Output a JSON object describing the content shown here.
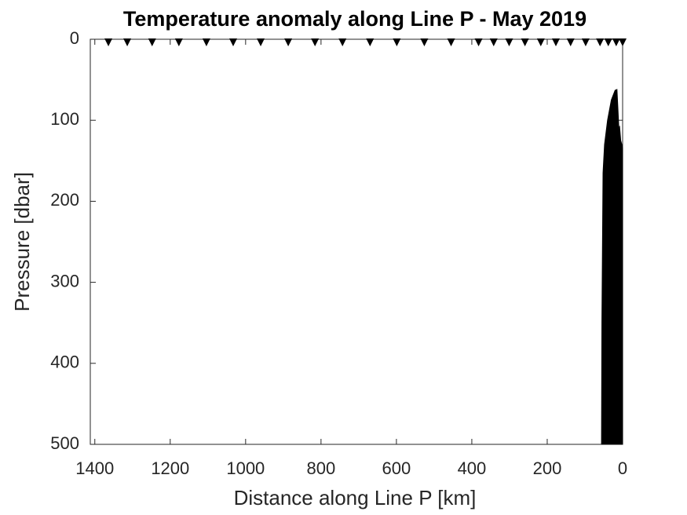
{
  "chart_data": {
    "type": "section",
    "title": "Temperature anomaly along Line P - May 2019",
    "xlabel": "Distance along Line P [km]",
    "ylabel": "Pressure [dbar]",
    "xlim": [
      0,
      1412
    ],
    "xdir": "reverse",
    "xticks": [
      0,
      200,
      400,
      600,
      800,
      1000,
      1200,
      1400
    ],
    "ylim": [
      0,
      500
    ],
    "ydir": "reverse",
    "yticks": [
      0,
      100,
      200,
      300,
      400,
      500
    ],
    "grid": false,
    "stations_x": [
      1364,
      1314,
      1248,
      1177,
      1104,
      1033,
      960,
      887,
      816,
      743,
      670,
      599,
      526,
      455,
      382,
      342,
      301,
      259,
      217,
      177,
      138,
      98,
      60,
      38,
      17,
      0
    ],
    "station_color": "#000000",
    "bathymetry": {
      "color": "#000000",
      "x": [
        56,
        55,
        52,
        48,
        40,
        30,
        20,
        15,
        12,
        10,
        8,
        5,
        2,
        0,
        0
      ],
      "y": [
        500,
        350,
        165,
        130,
        100,
        75,
        63,
        62,
        90,
        110,
        108,
        125,
        130,
        135,
        500
      ]
    }
  }
}
